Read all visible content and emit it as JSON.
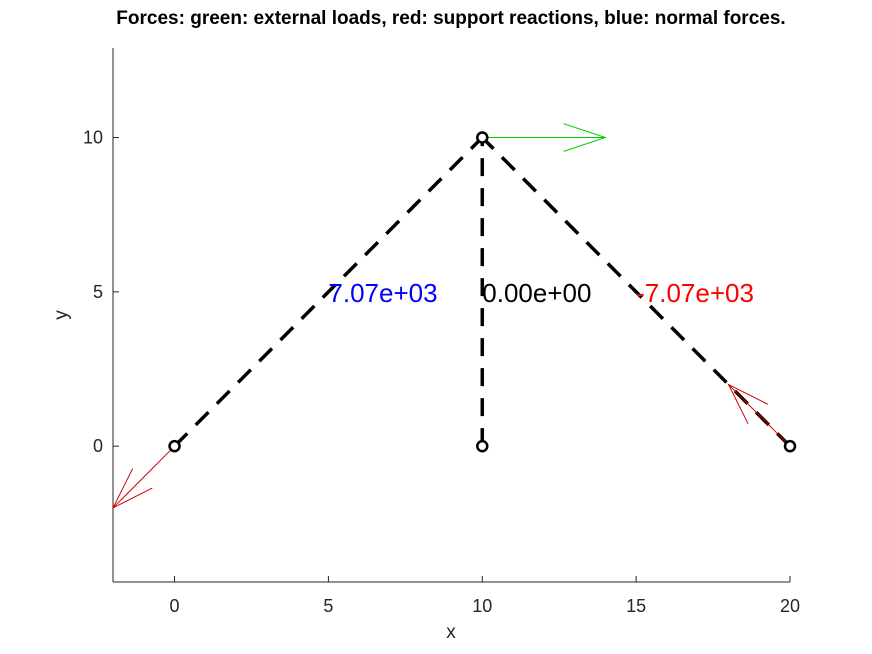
{
  "chart_data": {
    "type": "truss",
    "title": "Forces: green: external loads, red: support reactions, blue: normal forces.",
    "xlabel": "x",
    "ylabel": "y",
    "xlim": [
      -2,
      20
    ],
    "ylim": [
      -4.4,
      12.9
    ],
    "xticks": [
      0,
      5,
      10,
      15,
      20
    ],
    "yticks": [
      0,
      5,
      10
    ],
    "nodes": [
      {
        "x": 0,
        "y": 0
      },
      {
        "x": 10,
        "y": 0
      },
      {
        "x": 20,
        "y": 0
      },
      {
        "x": 10,
        "y": 10
      }
    ],
    "members": [
      {
        "from": 0,
        "to": 3,
        "label": "7.07e+03",
        "label_color": "#0000ff",
        "label_x": 5,
        "label_y": 5
      },
      {
        "from": 1,
        "to": 3,
        "label": "0.00e+00",
        "label_color": "#000000",
        "label_x": 10,
        "label_y": 5
      },
      {
        "from": 2,
        "to": 3,
        "label": "-7.07e+03",
        "label_color": "#ff0000",
        "label_x": 15,
        "label_y": 5
      }
    ],
    "external_loads": [
      {
        "x": 10,
        "y": 10,
        "dx": 4,
        "dy": 0,
        "color": "#00cc00"
      }
    ],
    "support_reactions": [
      {
        "x": 0,
        "y": 0,
        "dx": -2,
        "dy": -2,
        "color": "#cc0000"
      },
      {
        "x": 20,
        "y": 0,
        "dx": -2,
        "dy": 2,
        "color": "#cc0000"
      }
    ],
    "colors": {
      "external_loads": "#00cc00",
      "support_reactions": "#cc0000",
      "members": "#000000",
      "axis": "#262626"
    }
  }
}
